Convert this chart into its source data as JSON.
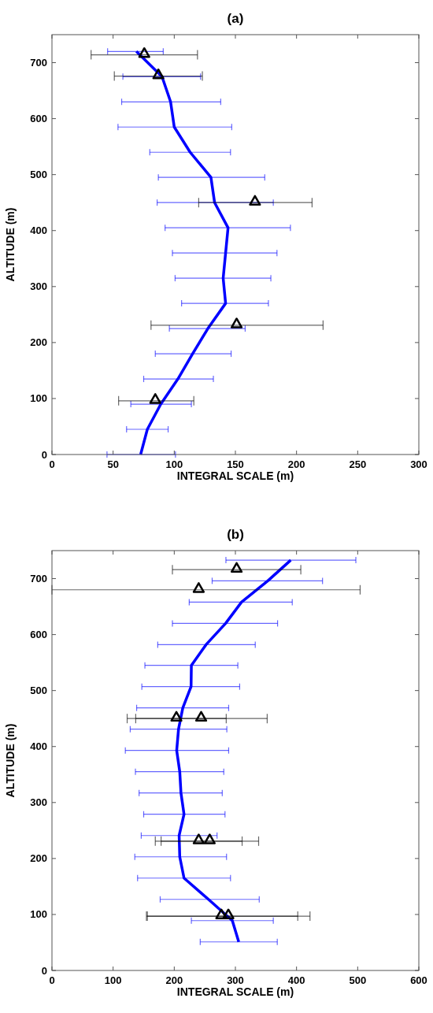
{
  "chart_data": [
    {
      "type": "line",
      "title": "(a)",
      "xlabel": "INTEGRAL SCALE (m)",
      "ylabel": "ALTITUDE (m)",
      "xlim": [
        0,
        300
      ],
      "xticks": [
        0,
        50,
        100,
        150,
        200,
        250,
        300
      ],
      "ylim": [
        0,
        750
      ],
      "yticks": [
        0,
        100,
        200,
        300,
        400,
        500,
        600,
        700
      ],
      "series": [
        {
          "color": "#0000ff",
          "marker": "none",
          "line_style": "solid",
          "x": [
            72.5,
            78,
            89,
            103,
            115,
            127.5,
            142,
            140,
            142,
            144,
            133,
            130,
            113,
            100,
            97,
            90,
            69
          ],
          "values": [
            0,
            45,
            90,
            135,
            180,
            225,
            270,
            315,
            360,
            405,
            450,
            495,
            540,
            585,
            630,
            675,
            720
          ],
          "xerrors": [
            [
              45,
              101
            ],
            [
              61,
              95
            ],
            [
              64.5,
              114
            ],
            [
              75,
              132
            ],
            [
              84.5,
              146.5
            ],
            [
              96,
              158
            ],
            [
              106,
              177
            ],
            [
              100.7,
              179
            ],
            [
              98.5,
              184
            ],
            [
              92.5,
              195
            ],
            [
              86,
              181
            ],
            [
              87,
              174
            ],
            [
              80,
              146
            ],
            [
              54,
              147
            ],
            [
              57,
              138
            ],
            [
              58,
              121.5
            ],
            [
              45.5,
              91
            ]
          ]
        },
        {
          "type": "scatter",
          "color": "#000000",
          "marker": "triangle",
          "x": [
            84.5,
            151,
            166,
            87,
            75.5
          ],
          "values": [
            96,
            231,
            450,
            676,
            714
          ],
          "xerrors": [
            [
              54.5,
              116
            ],
            [
              81,
              221.7
            ],
            [
              120,
              212.7
            ],
            [
              51,
              123
            ],
            [
              32,
              119
            ]
          ]
        }
      ]
    },
    {
      "type": "line",
      "title": "(b)",
      "xlabel": "INTEGRAL SCALE (m)",
      "ylabel": "ALTITUDE (m)",
      "xlim": [
        0,
        600
      ],
      "xticks": [
        0,
        100,
        200,
        300,
        400,
        500,
        600
      ],
      "ylim": [
        0,
        750
      ],
      "yticks": [
        0,
        100,
        200,
        300,
        400,
        500,
        600,
        700
      ],
      "series": [
        {
          "color": "#0000ff",
          "marker": "none",
          "line_style": "solid",
          "x": [
            305.5,
            295,
            256,
            216,
            209,
            208,
            216,
            211,
            209,
            204,
            207,
            214,
            227.5,
            228,
            252,
            284,
            310,
            353,
            390.5
          ],
          "values": [
            51,
            89,
            127,
            165,
            203,
            241,
            279,
            317,
            355,
            393,
            431,
            469,
            507,
            545,
            582,
            620,
            658,
            696,
            733
          ],
          "xerrors": [
            [
              242.5,
              368.5
            ],
            [
              228,
              362
            ],
            [
              177,
              339
            ],
            [
              140,
              292
            ],
            [
              135.5,
              285.5
            ],
            [
              146,
              270
            ],
            [
              150,
              283
            ],
            [
              142.5,
              278.5
            ],
            [
              136.5,
              281
            ],
            [
              120,
              289
            ],
            [
              128,
              286
            ],
            [
              138.5,
              289
            ],
            [
              147,
              307
            ],
            [
              152,
              304
            ],
            [
              173,
              332.5
            ],
            [
              197,
              369
            ],
            [
              224.5,
              393
            ],
            [
              262,
              442.5
            ],
            [
              284.5,
              497
            ]
          ]
        },
        {
          "type": "scatter",
          "color": "#000000",
          "marker": "triangle",
          "x": [
            277,
            288.5,
            240,
            258,
            203.5,
            244,
            240,
            302
          ],
          "values": [
            97,
            97,
            231,
            231,
            450,
            450,
            680,
            716
          ],
          "xerrors": [
            [
              154.5,
              402
            ],
            [
              156,
              422
            ],
            [
              169,
              311
            ],
            [
              178.5,
              338
            ],
            [
              123,
              285
            ],
            [
              137,
              352
            ],
            [
              0,
              504
            ],
            [
              197,
              407
            ]
          ]
        }
      ]
    }
  ]
}
